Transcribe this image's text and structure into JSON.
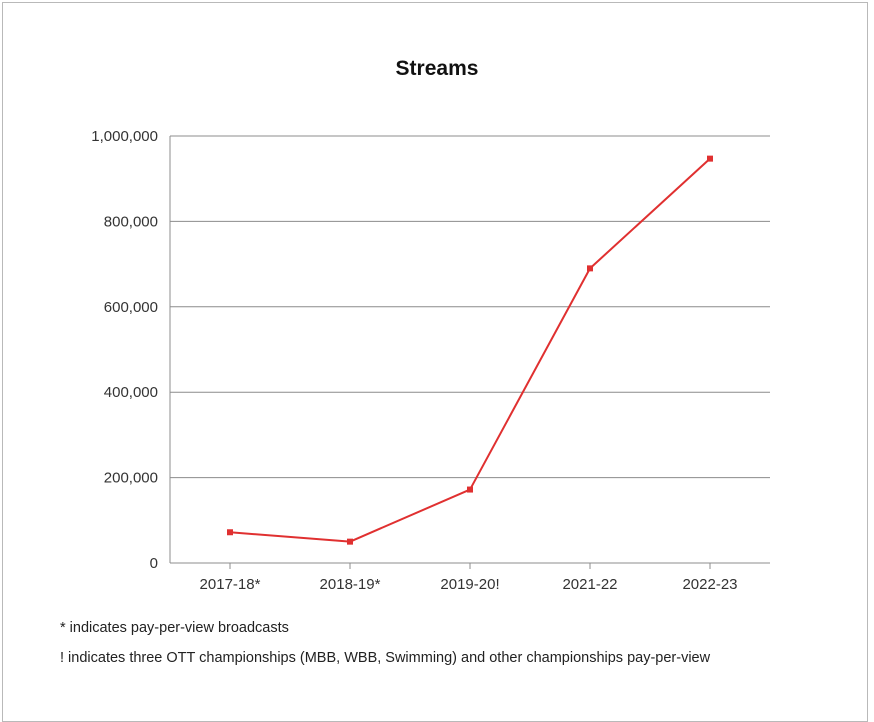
{
  "chart_data": {
    "type": "line",
    "title": "Streams",
    "xlabel": "",
    "ylabel": "",
    "categories": [
      "2017-18*",
      "2018-19*",
      "2019-20!",
      "2021-22",
      "2022-23"
    ],
    "series": [
      {
        "values": [
          72000,
          50000,
          172000,
          690000,
          947000
        ]
      }
    ],
    "ylim": [
      0,
      1000000
    ],
    "yticks": [
      0,
      200000,
      400000,
      600000,
      800000,
      1000000
    ],
    "ytick_labels": [
      "0",
      "200,000",
      "400,000",
      "600,000",
      "800,000",
      "1,000,000"
    ],
    "grid": true,
    "line_color": "#e03030",
    "footnotes": [
      "* indicates pay-per-view broadcasts",
      "! indicates three OTT championships (MBB, WBB, Swimming) and other championships pay-per-view"
    ]
  }
}
